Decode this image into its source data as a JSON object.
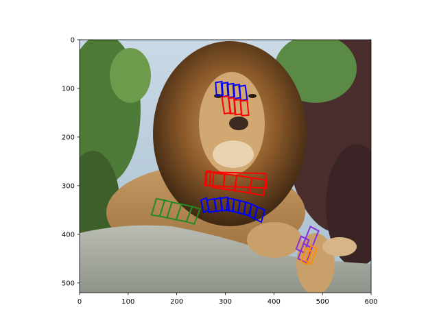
{
  "chart_data": {
    "type": "image",
    "xlim": [
      0,
      600
    ],
    "ylim": [
      520,
      0
    ],
    "xticks": [
      0,
      100,
      200,
      300,
      400,
      500,
      600
    ],
    "yticks": [
      0,
      100,
      200,
      300,
      400,
      500
    ],
    "xtick_labels": [
      "0",
      "100",
      "200",
      "300",
      "400",
      "500",
      "600"
    ],
    "ytick_labels": [
      "0",
      "100",
      "200",
      "300",
      "400",
      "500"
    ],
    "image_content": "lion lying on a rock with annotated text-region boxes",
    "annotation_groups": [
      {
        "color": "#0000ff",
        "boxes": [
          [
            [
              280,
              88
            ],
            [
              293,
              86
            ],
            [
              295,
              113
            ],
            [
              282,
              115
            ]
          ],
          [
            [
              292,
              90
            ],
            [
              305,
              88
            ],
            [
              307,
              115
            ],
            [
              294,
              117
            ]
          ],
          [
            [
              304,
              92
            ],
            [
              317,
              90
            ],
            [
              319,
              117
            ],
            [
              306,
              119
            ]
          ],
          [
            [
              316,
              94
            ],
            [
              329,
              92
            ],
            [
              331,
              119
            ],
            [
              318,
              121
            ]
          ],
          [
            [
              328,
              96
            ],
            [
              341,
              94
            ],
            [
              345,
              123
            ],
            [
              332,
              125
            ]
          ]
        ]
      },
      {
        "color": "#ff0000",
        "boxes": [
          [
            [
              293,
              118
            ],
            [
              306,
              116
            ],
            [
              311,
              150
            ],
            [
              298,
              152
            ]
          ],
          [
            [
              307,
              120
            ],
            [
              318,
              119
            ],
            [
              321,
              151
            ],
            [
              310,
              152
            ]
          ],
          [
            [
              318,
              124
            ],
            [
              331,
              123
            ],
            [
              333,
              153
            ],
            [
              320,
              154
            ]
          ],
          [
            [
              331,
              126
            ],
            [
              345,
              125
            ],
            [
              348,
              155
            ],
            [
              334,
              156
            ]
          ]
        ]
      },
      {
        "color": "#ff0000",
        "boxes": [
          [
            [
              262,
              270
            ],
            [
              270,
              270
            ],
            [
              268,
              300
            ],
            [
              260,
              300
            ]
          ],
          [
            [
              260,
              272
            ],
            [
              383,
              275
            ],
            [
              385,
              305
            ],
            [
              258,
              300
            ]
          ],
          [
            [
              276,
              274
            ],
            [
              298,
              276
            ],
            [
              296,
              306
            ],
            [
              274,
              304
            ]
          ],
          [
            [
              299,
              276
            ],
            [
              323,
              279
            ],
            [
              320,
              310
            ],
            [
              296,
              307
            ]
          ],
          [
            [
              324,
              279
            ],
            [
              355,
              284
            ],
            [
              349,
              315
            ],
            [
              318,
              310
            ]
          ],
          [
            [
              355,
              284
            ],
            [
              384,
              289
            ],
            [
              378,
              320
            ],
            [
              349,
              315
            ]
          ]
        ]
      },
      {
        "color": "#0000ff",
        "boxes": [
          [
            [
              250,
              330
            ],
            [
              261,
              325
            ],
            [
              266,
              350
            ],
            [
              255,
              355
            ]
          ],
          [
            [
              262,
              330
            ],
            [
              277,
              327
            ],
            [
              281,
              352
            ],
            [
              266,
              355
            ]
          ],
          [
            [
              278,
              328
            ],
            [
              290,
              325
            ],
            [
              294,
              350
            ],
            [
              282,
              353
            ]
          ],
          [
            [
              290,
              326
            ],
            [
              305,
              324
            ],
            [
              308,
              349
            ],
            [
              293,
              352
            ]
          ],
          [
            [
              305,
              326
            ],
            [
              318,
              328
            ],
            [
              316,
              353
            ],
            [
              303,
              351
            ]
          ],
          [
            [
              318,
              328
            ],
            [
              330,
              331
            ],
            [
              327,
              356
            ],
            [
              315,
              353
            ]
          ],
          [
            [
              330,
              331
            ],
            [
              342,
              334
            ],
            [
              339,
              359
            ],
            [
              327,
              356
            ]
          ],
          [
            [
              342,
              334
            ],
            [
              354,
              338
            ],
            [
              350,
              362
            ],
            [
              338,
              358
            ]
          ],
          [
            [
              354,
              338
            ],
            [
              366,
              344
            ],
            [
              360,
              368
            ],
            [
              348,
              362
            ]
          ],
          [
            [
              366,
              344
            ],
            [
              381,
              350
            ],
            [
              374,
              375
            ],
            [
              360,
              368
            ]
          ]
        ]
      },
      {
        "color": "#228b22",
        "boxes": [
          [
            [
              158,
              327
            ],
            [
              175,
              330
            ],
            [
              165,
              363
            ],
            [
              148,
              360
            ]
          ],
          [
            [
              175,
              330
            ],
            [
              190,
              334
            ],
            [
              180,
              366
            ],
            [
              165,
              363
            ]
          ],
          [
            [
              190,
              334
            ],
            [
              210,
              338
            ],
            [
              199,
              370
            ],
            [
              180,
              366
            ]
          ],
          [
            [
              210,
              338
            ],
            [
              232,
              343
            ],
            [
              220,
              374
            ],
            [
              199,
              370
            ]
          ],
          [
            [
              232,
              343
            ],
            [
              248,
              348
            ],
            [
              236,
              379
            ],
            [
              220,
              374
            ]
          ]
        ]
      },
      {
        "color": "#8a2be2",
        "boxes": [
          [
            [
              475,
              384
            ],
            [
              492,
              393
            ],
            [
              478,
              428
            ],
            [
              461,
              419
            ]
          ],
          [
            [
              461,
              419
            ],
            [
              478,
              428
            ],
            [
              467,
              459
            ],
            [
              450,
              450
            ]
          ],
          [
            [
              456,
              404
            ],
            [
              472,
              412
            ],
            [
              462,
              438
            ],
            [
              446,
              430
            ]
          ]
        ]
      },
      {
        "color": "#ff8c00",
        "boxes": [
          [
            [
              477,
              423
            ],
            [
              488,
              430
            ],
            [
              476,
              461
            ],
            [
              465,
              454
            ]
          ],
          [
            [
              466,
              428
            ],
            [
              478,
              435
            ],
            [
              468,
              462
            ],
            [
              456,
              455
            ]
          ]
        ]
      }
    ]
  }
}
